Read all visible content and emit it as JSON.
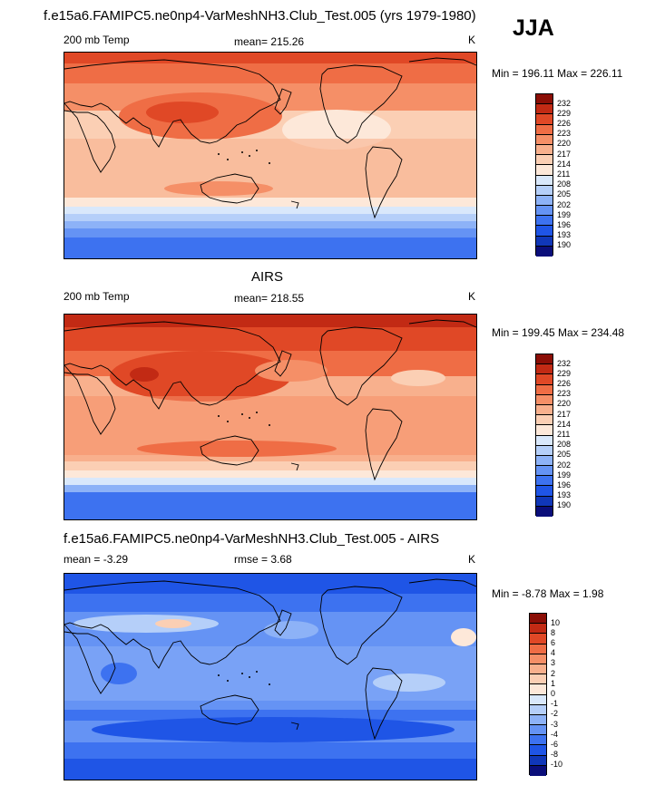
{
  "page": {
    "season": "JJA",
    "model_title": "f.e15a6.FAMIPC5.ne0np4-VarMeshNH3.Club_Test.005 (yrs 1979-1980)"
  },
  "panels": [
    {
      "id": "model",
      "title": "",
      "left_label": "200 mb Temp",
      "center_label": "mean= 215.26",
      "units": "K",
      "minmax": "Min = 196.11 Max = 226.11",
      "palette": [
        "#0a0e7a",
        "#1037b8",
        "#1f55e6",
        "#3d72f0",
        "#6593f4",
        "#8db2f7",
        "#b5cff9",
        "#d9e8fb",
        "#fde8d9",
        "#fbcfb4",
        "#f8b08d",
        "#f58f67",
        "#ef6d45",
        "#e04826",
        "#c22a14",
        "#8b0e06"
      ],
      "labels": [
        "190",
        "193",
        "196",
        "199",
        "202",
        "205",
        "208",
        "211",
        "214",
        "217",
        "220",
        "223",
        "226",
        "229",
        "232"
      ]
    },
    {
      "id": "obs",
      "title": "AIRS",
      "left_label": "200 mb Temp",
      "center_label": "mean= 218.55",
      "units": "K",
      "minmax": "Min = 199.45 Max = 234.48",
      "palette": [
        "#0a0e7a",
        "#1037b8",
        "#1f55e6",
        "#3d72f0",
        "#6593f4",
        "#8db2f7",
        "#b5cff9",
        "#d9e8fb",
        "#fde8d9",
        "#fbcfb4",
        "#f8b08d",
        "#f58f67",
        "#ef6d45",
        "#e04826",
        "#c22a14",
        "#8b0e06"
      ],
      "labels": [
        "190",
        "193",
        "196",
        "199",
        "202",
        "205",
        "208",
        "211",
        "214",
        "217",
        "220",
        "223",
        "226",
        "229",
        "232"
      ]
    },
    {
      "id": "diff",
      "title": "f.e15a6.FAMIPC5.ne0np4-VarMeshNH3.Club_Test.005 - AIRS",
      "left_label": "mean =  -3.29",
      "center_label": "rmse =   3.68",
      "units": "K",
      "minmax": "Min =  -8.78 Max =   1.98",
      "palette": [
        "#0a0e7a",
        "#1037b8",
        "#1f55e6",
        "#3d72f0",
        "#6593f4",
        "#8db2f7",
        "#b5cff9",
        "#d9e8fb",
        "#fde8d9",
        "#fbcfb4",
        "#f8b08d",
        "#f58f67",
        "#ef6d45",
        "#e04826",
        "#c22a14",
        "#8b0e06"
      ],
      "labels": [
        "-10",
        "-8",
        "-6",
        "-4",
        "-3",
        "-2",
        "-1",
        "0",
        "1",
        "2",
        "3",
        "4",
        "6",
        "8",
        "10"
      ]
    }
  ],
  "chart_data": [
    {
      "type": "heatmap",
      "title": "200 mb Temp",
      "variable": "200 mb Temp",
      "units": "K",
      "mean": 215.26,
      "min": 196.11,
      "max": 226.11,
      "contour_levels": [
        190,
        193,
        196,
        199,
        202,
        205,
        208,
        211,
        214,
        217,
        220,
        223,
        226,
        229,
        232
      ]
    },
    {
      "type": "heatmap",
      "title": "AIRS",
      "variable": "200 mb Temp",
      "units": "K",
      "mean": 218.55,
      "min": 199.45,
      "max": 234.48,
      "contour_levels": [
        190,
        193,
        196,
        199,
        202,
        205,
        208,
        211,
        214,
        217,
        220,
        223,
        226,
        229,
        232
      ]
    },
    {
      "type": "heatmap",
      "title": "f.e15a6.FAMIPC5.ne0np4-VarMeshNH3.Club_Test.005 - AIRS",
      "units": "K",
      "mean": -3.29,
      "rmse": 3.68,
      "min": -8.78,
      "max": 1.98,
      "contour_levels": [
        -10,
        -8,
        -6,
        -4,
        -3,
        -2,
        -1,
        0,
        1,
        2,
        3,
        4,
        6,
        8,
        10
      ]
    }
  ]
}
